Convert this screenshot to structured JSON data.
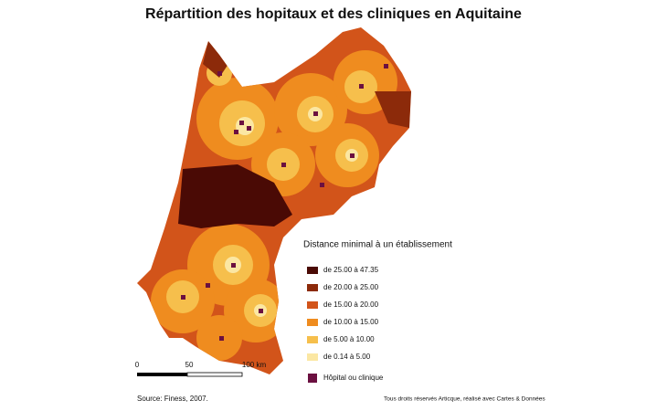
{
  "title": "Répartition des hopitaux et des cliniques en Aquitaine",
  "legend": {
    "title": "Distance minimal à un établissement",
    "items": [
      {
        "label": "de 25.00 à 47.35",
        "color": "#4a0a05"
      },
      {
        "label": "de 20.00 à 25.00",
        "color": "#8c2a0a"
      },
      {
        "label": "de 15.00 à 20.00",
        "color": "#d2541a"
      },
      {
        "label": "de 10.00 à 15.00",
        "color": "#ef8c1f"
      },
      {
        "label": "de 5.00 à 10.00",
        "color": "#f6bf4c"
      },
      {
        "label": "de 0.14 à 5.00",
        "color": "#fbe7a3"
      }
    ],
    "marker": {
      "label": "Hôpital ou clinique",
      "color": "#6b1040"
    }
  },
  "scale": {
    "labels": [
      "0",
      "50",
      "100 km"
    ]
  },
  "source": "Source: Finess, 2007.",
  "credits": "Tous droits réservés Articque, réalisé avec Cartes & Données"
}
